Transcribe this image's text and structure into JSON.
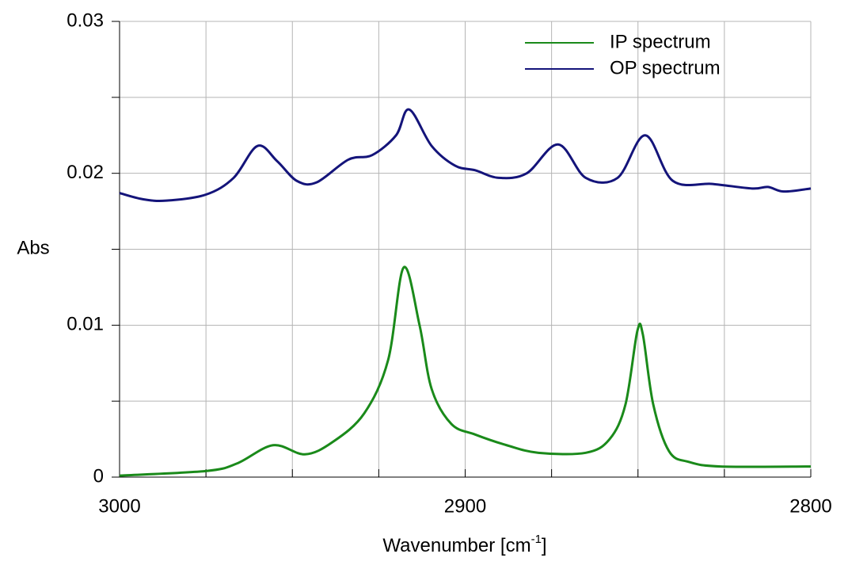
{
  "chart_data": {
    "type": "line",
    "xlabel": {
      "text": "Wavenumber [cm",
      "sup": "-1",
      "end": "]"
    },
    "ylabel": "Abs",
    "xlim": [
      3000,
      2800
    ],
    "xticks": [
      3000,
      2900,
      2800
    ],
    "xminor": [
      2975,
      2950,
      2925,
      2875,
      2850,
      2825
    ],
    "ylim": [
      0,
      0.03
    ],
    "yticks": [
      0,
      0.01,
      0.02,
      0.03
    ],
    "yminor": [
      0.005,
      0.015,
      0.025
    ],
    "grid": true,
    "legend": "upper-right",
    "series": [
      {
        "name": "IP spectrum",
        "color": "#1a8a1a",
        "x": [
          3000,
          2975,
          2966,
          2955.6,
          2946.4,
          2938.4,
          2929.2,
          2922.3,
          2917.8,
          2913.2,
          2909.7,
          2904,
          2897.1,
          2888,
          2878.8,
          2865.1,
          2858.2,
          2853.6,
          2850.2,
          2848.6,
          2845.6,
          2841,
          2835.3,
          2826.1,
          2800
        ],
        "values": [
          0.0001,
          0.0004,
          0.0009,
          0.0021,
          0.0015,
          0.0023,
          0.0042,
          0.0077,
          0.0138,
          0.01,
          0.0058,
          0.0035,
          0.0028,
          0.0021,
          0.0016,
          0.0016,
          0.0025,
          0.0048,
          0.0096,
          0.0094,
          0.0048,
          0.0017,
          0.001,
          0.0007,
          0.0007
        ]
      },
      {
        "name": "OP spectrum",
        "color": "#14147a",
        "x": [
          3000,
          2993.4,
          2986.5,
          2975,
          2967,
          2960.1,
          2954.4,
          2948.7,
          2943,
          2933.8,
          2926.9,
          2920,
          2916.2,
          2909.7,
          2902.9,
          2897.1,
          2890.3,
          2882.2,
          2873.1,
          2865.1,
          2855.9,
          2847.9,
          2839.9,
          2828.4,
          2817,
          2812.4,
          2807.8,
          2800
        ],
        "values": [
          0.0187,
          0.0183,
          0.0182,
          0.0186,
          0.0197,
          0.0218,
          0.0208,
          0.0195,
          0.0194,
          0.0209,
          0.0212,
          0.0225,
          0.0242,
          0.0218,
          0.0205,
          0.0202,
          0.0197,
          0.02,
          0.0219,
          0.0197,
          0.0197,
          0.0225,
          0.0195,
          0.0193,
          0.019,
          0.0191,
          0.0188,
          0.019
        ]
      }
    ]
  }
}
